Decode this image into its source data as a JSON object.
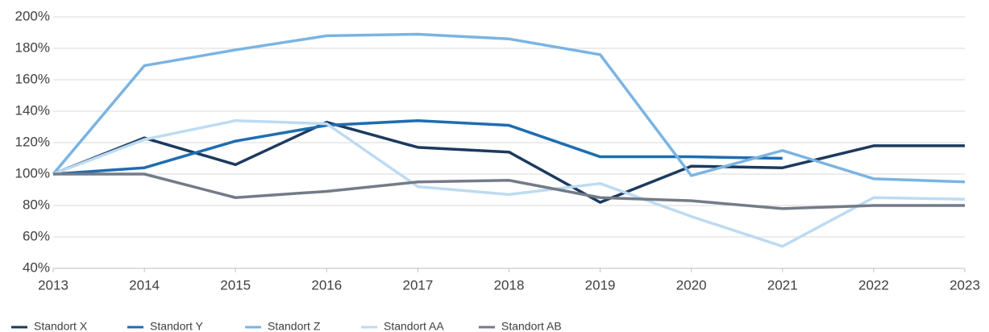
{
  "chart_data": {
    "type": "line",
    "x": [
      2013,
      2014,
      2015,
      2016,
      2017,
      2018,
      2019,
      2020,
      2021,
      2022,
      2023
    ],
    "xlim": [
      2013,
      2023
    ],
    "xticks": [
      2013,
      2014,
      2015,
      2016,
      2017,
      2018,
      2019,
      2020,
      2021,
      2022,
      2023
    ],
    "ylim": [
      40,
      200
    ],
    "yticks": [
      {
        "value": 40,
        "label": "40%"
      },
      {
        "value": 60,
        "label": "60%"
      },
      {
        "value": 80,
        "label": "80%"
      },
      {
        "value": 100,
        "label": "100%"
      },
      {
        "value": 120,
        "label": "120%"
      },
      {
        "value": 140,
        "label": "140%"
      },
      {
        "value": 160,
        "label": "160%"
      },
      {
        "value": 180,
        "label": "180%"
      },
      {
        "value": 200,
        "label": "200%"
      }
    ],
    "grid": true,
    "legend": "bottom",
    "series": [
      {
        "name": "Standort X",
        "color": "#1c3a5e",
        "values": [
          100,
          123,
          106,
          133,
          117,
          114,
          82,
          105,
          104,
          118,
          118
        ]
      },
      {
        "name": "Standort Y",
        "color": "#1f6db0",
        "values": [
          100,
          104,
          121,
          131,
          134,
          131,
          111,
          111,
          110,
          null,
          null
        ]
      },
      {
        "name": "Standort Z",
        "color": "#7ab4e2",
        "values": [
          100,
          169,
          179,
          188,
          189,
          186,
          176,
          99,
          115,
          97,
          95
        ]
      },
      {
        "name": "Standort AA",
        "color": "#bddbf2",
        "values": [
          100,
          122,
          134,
          132,
          92,
          87,
          94,
          73,
          54,
          85,
          84
        ]
      },
      {
        "name": "Standort AB",
        "color": "#737b87",
        "values": [
          100,
          100,
          85,
          89,
          95,
          96,
          85,
          83,
          78,
          80,
          80
        ]
      }
    ]
  }
}
